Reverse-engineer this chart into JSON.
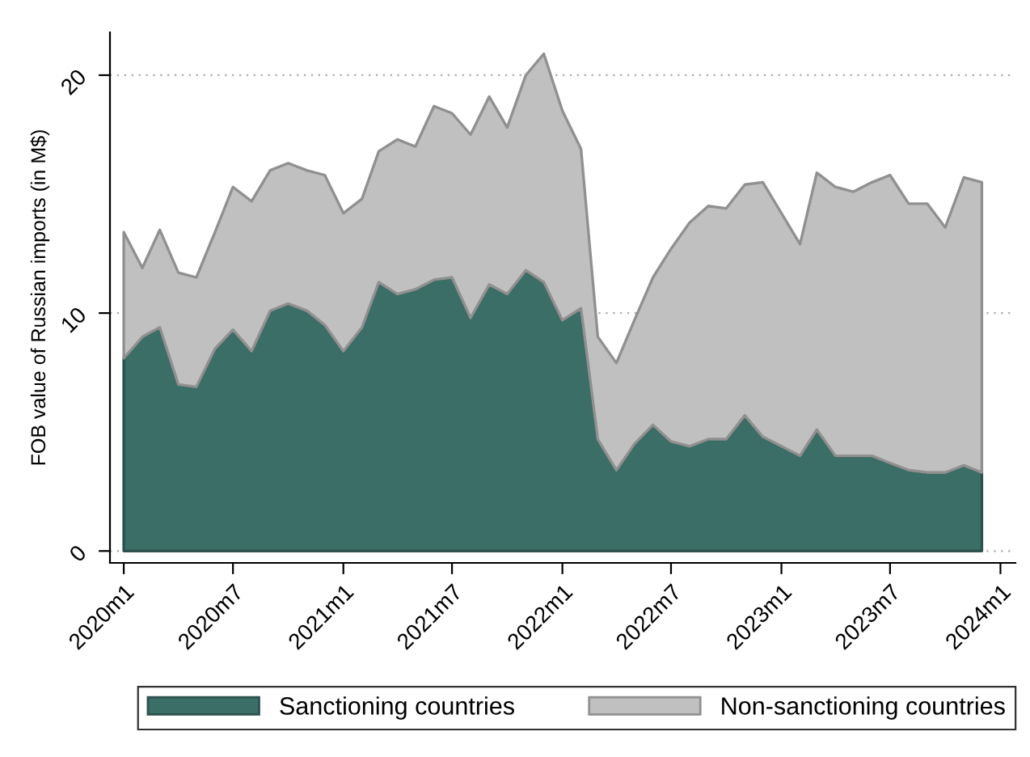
{
  "chart_data": {
    "type": "area",
    "stacked": true,
    "ylabel": "FOB value of Russian imports (in M$)",
    "x": [
      "2020-01",
      "2020-02",
      "2020-03",
      "2020-04",
      "2020-05",
      "2020-06",
      "2020-07",
      "2020-08",
      "2020-09",
      "2020-10",
      "2020-11",
      "2020-12",
      "2021-01",
      "2021-02",
      "2021-03",
      "2021-04",
      "2021-05",
      "2021-06",
      "2021-07",
      "2021-08",
      "2021-09",
      "2021-10",
      "2021-11",
      "2021-12",
      "2022-01",
      "2022-02",
      "2022-03",
      "2022-04",
      "2022-05",
      "2022-06",
      "2022-07",
      "2022-08",
      "2022-09",
      "2022-10",
      "2022-11",
      "2022-12",
      "2023-01",
      "2023-02",
      "2023-03",
      "2023-04",
      "2023-05",
      "2023-06",
      "2023-07",
      "2023-08",
      "2023-09",
      "2023-10",
      "2023-11",
      "2023-12"
    ],
    "series": [
      {
        "name": "Sanctioning countries",
        "color": "#3b6e66",
        "values": [
          8.1,
          9.0,
          9.4,
          7.0,
          6.9,
          8.5,
          9.3,
          8.4,
          10.1,
          10.4,
          10.1,
          9.5,
          8.4,
          9.4,
          11.3,
          10.8,
          11.0,
          11.4,
          11.5,
          9.8,
          11.2,
          10.8,
          11.8,
          11.3,
          9.7,
          10.2,
          4.7,
          3.4,
          4.5,
          5.3,
          4.6,
          4.4,
          4.7,
          4.7,
          5.7,
          4.8,
          4.4,
          4.0,
          5.1,
          4.0,
          4.0,
          4.0,
          3.7,
          3.4,
          3.3,
          3.3,
          3.6,
          3.3
        ]
      },
      {
        "name": "Non-sanctioning countries",
        "color": "#c0c0c0",
        "values": [
          5.3,
          2.9,
          4.1,
          4.7,
          4.6,
          4.9,
          6.0,
          6.3,
          5.9,
          5.9,
          5.9,
          6.3,
          5.8,
          5.4,
          5.5,
          6.5,
          6.0,
          7.3,
          6.9,
          7.7,
          7.9,
          7.0,
          8.2,
          9.6,
          8.8,
          6.7,
          4.3,
          4.5,
          5.2,
          6.2,
          8.1,
          9.4,
          9.8,
          9.7,
          9.7,
          10.7,
          9.8,
          8.9,
          10.8,
          11.3,
          11.1,
          11.5,
          12.1,
          11.2,
          11.3,
          10.3,
          12.1,
          12.2
        ]
      }
    ],
    "xlim": [
      "2019-12-09",
      "2024-01-26"
    ],
    "xticks": [
      {
        "value": "2020-01",
        "label": "2020m1"
      },
      {
        "value": "2020-07",
        "label": "2020m7"
      },
      {
        "value": "2021-01",
        "label": "2021m1"
      },
      {
        "value": "2021-07",
        "label": "2021m7"
      },
      {
        "value": "2022-01",
        "label": "2022m1"
      },
      {
        "value": "2022-07",
        "label": "2022m7"
      },
      {
        "value": "2023-01",
        "label": "2023m1"
      },
      {
        "value": "2023-07",
        "label": "2023m7"
      },
      {
        "value": "2024-01",
        "label": "2024m1"
      }
    ],
    "ylim": [
      -0.5,
      21.8
    ],
    "yticks": [
      0,
      10,
      20
    ],
    "grid": "y",
    "legend": "bottom"
  }
}
